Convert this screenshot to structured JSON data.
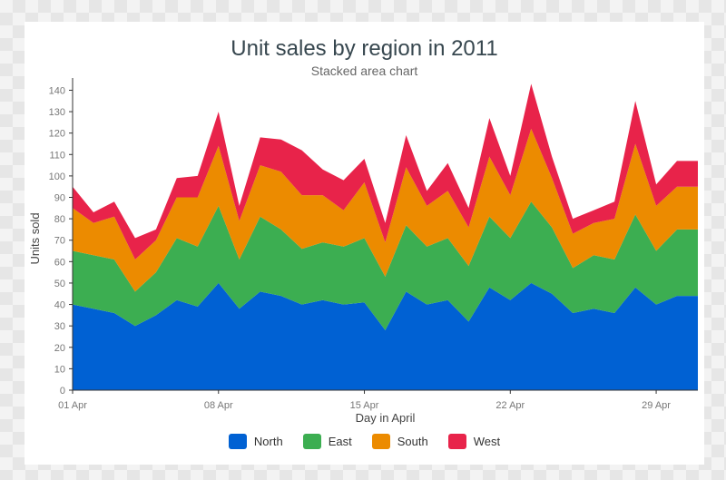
{
  "chart_data": {
    "type": "area",
    "stacked": true,
    "title": "Unit sales by region in 2011",
    "subtitle": "Stacked area chart",
    "xlabel": "Day in April",
    "ylabel": "Units sold",
    "ylim": [
      0,
      144
    ],
    "yticks": [
      0,
      10,
      20,
      30,
      40,
      50,
      60,
      70,
      80,
      90,
      100,
      110,
      120,
      130,
      140
    ],
    "x_tick_labels": [
      {
        "day": 1,
        "label": "01 Apr"
      },
      {
        "day": 8,
        "label": "08 Apr"
      },
      {
        "day": 15,
        "label": "15 Apr"
      },
      {
        "day": 22,
        "label": "22 Apr"
      },
      {
        "day": 29,
        "label": "29 Apr"
      }
    ],
    "x": [
      1,
      2,
      3,
      4,
      5,
      6,
      7,
      8,
      9,
      10,
      11,
      12,
      13,
      14,
      15,
      16,
      17,
      18,
      19,
      20,
      21,
      22,
      23,
      24,
      25,
      26,
      27,
      28,
      29,
      30,
      31
    ],
    "series": [
      {
        "name": "North",
        "color": "#0061d3",
        "values": [
          40,
          38,
          36,
          30,
          35,
          42,
          39,
          50,
          38,
          46,
          44,
          40,
          42,
          40,
          41,
          28,
          46,
          40,
          42,
          32,
          48,
          42,
          50,
          45,
          36,
          38,
          36,
          48,
          40,
          44,
          44
        ]
      },
      {
        "name": "East",
        "color": "#3cae51",
        "values": [
          25,
          25,
          25,
          16,
          20,
          29,
          28,
          36,
          23,
          35,
          31,
          26,
          27,
          27,
          30,
          25,
          31,
          27,
          29,
          26,
          33,
          29,
          38,
          31,
          21,
          25,
          25,
          34,
          25,
          31,
          31
        ]
      },
      {
        "name": "South",
        "color": "#ec8b00",
        "values": [
          20,
          15,
          20,
          15,
          15,
          19,
          23,
          28,
          18,
          24,
          27,
          25,
          22,
          17,
          26,
          16,
          27,
          19,
          22,
          18,
          28,
          20,
          34,
          23,
          16,
          15,
          19,
          33,
          21,
          20,
          20
        ]
      },
      {
        "name": "West",
        "color": "#e8234a",
        "values": [
          10,
          5,
          7,
          10,
          5,
          9,
          10,
          16,
          7,
          13,
          15,
          21,
          12,
          14,
          11,
          9,
          15,
          7,
          13,
          9,
          18,
          9,
          21,
          10,
          7,
          6,
          8,
          20,
          10,
          12,
          12
        ]
      }
    ],
    "legend_position": "bottom",
    "grid": false
  }
}
